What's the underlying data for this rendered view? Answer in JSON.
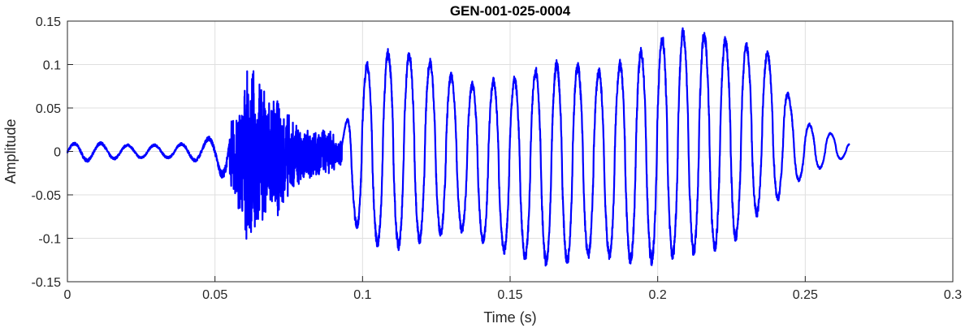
{
  "chart_data": {
    "type": "line",
    "title": "GEN-001-025-0004",
    "xlabel": "Time (s)",
    "ylabel": "Amplitude",
    "xlim": [
      0,
      0.3
    ],
    "ylim": [
      -0.15,
      0.15
    ],
    "grid": true,
    "x_ticks": [
      0,
      0.05,
      0.1,
      0.15,
      0.2,
      0.25,
      0.3
    ],
    "x_tick_labels": [
      "0",
      "0.05",
      "0.1",
      "0.15",
      "0.2",
      "0.25",
      "0.3"
    ],
    "y_ticks": [
      -0.15,
      -0.1,
      -0.05,
      0,
      0.05,
      0.1,
      0.15
    ],
    "y_tick_labels": [
      "-0.15",
      "-0.1",
      "-0.05",
      "0",
      "0.05",
      "0.1",
      "0.15"
    ],
    "series_color": "#0000FF",
    "grid_color": "#DFDFDF",
    "signal_duration": 0.265,
    "envelope": {
      "t": [
        0,
        0.005,
        0.02,
        0.035,
        0.045,
        0.05,
        0.055,
        0.058,
        0.062,
        0.066,
        0.07,
        0.075,
        0.08,
        0.085,
        0.09,
        0.093,
        0.097,
        0.1,
        0.105,
        0.11,
        0.115,
        0.12,
        0.125,
        0.13,
        0.135,
        0.14,
        0.145,
        0.15,
        0.155,
        0.16,
        0.165,
        0.17,
        0.175,
        0.18,
        0.185,
        0.19,
        0.195,
        0.2,
        0.205,
        0.21,
        0.215,
        0.22,
        0.225,
        0.23,
        0.235,
        0.24,
        0.245,
        0.25,
        0.255,
        0.26,
        0.265
      ],
      "pos": [
        0.008,
        0.012,
        0.008,
        0.008,
        0.012,
        0.02,
        0.035,
        0.06,
        0.105,
        0.08,
        0.07,
        0.045,
        0.03,
        0.03,
        0.025,
        0.015,
        0.07,
        0.1,
        0.11,
        0.12,
        0.115,
        0.115,
        0.1,
        0.09,
        0.08,
        0.08,
        0.085,
        0.085,
        0.09,
        0.1,
        0.105,
        0.105,
        0.1,
        0.095,
        0.1,
        0.11,
        0.12,
        0.13,
        0.145,
        0.14,
        0.14,
        0.135,
        0.13,
        0.125,
        0.12,
        0.11,
        0.06,
        0.035,
        0.025,
        0.02,
        0.01
      ],
      "neg": [
        -0.01,
        -0.012,
        -0.008,
        -0.008,
        -0.012,
        -0.02,
        -0.04,
        -0.08,
        -0.115,
        -0.09,
        -0.085,
        -0.06,
        -0.04,
        -0.03,
        -0.025,
        -0.015,
        -0.08,
        -0.105,
        -0.11,
        -0.115,
        -0.11,
        -0.105,
        -0.1,
        -0.09,
        -0.095,
        -0.105,
        -0.115,
        -0.12,
        -0.125,
        -0.13,
        -0.135,
        -0.13,
        -0.125,
        -0.12,
        -0.125,
        -0.13,
        -0.13,
        -0.13,
        -0.125,
        -0.12,
        -0.12,
        -0.115,
        -0.11,
        -0.09,
        -0.07,
        -0.06,
        -0.04,
        -0.03,
        -0.02,
        -0.012,
        -0.005
      ]
    }
  }
}
